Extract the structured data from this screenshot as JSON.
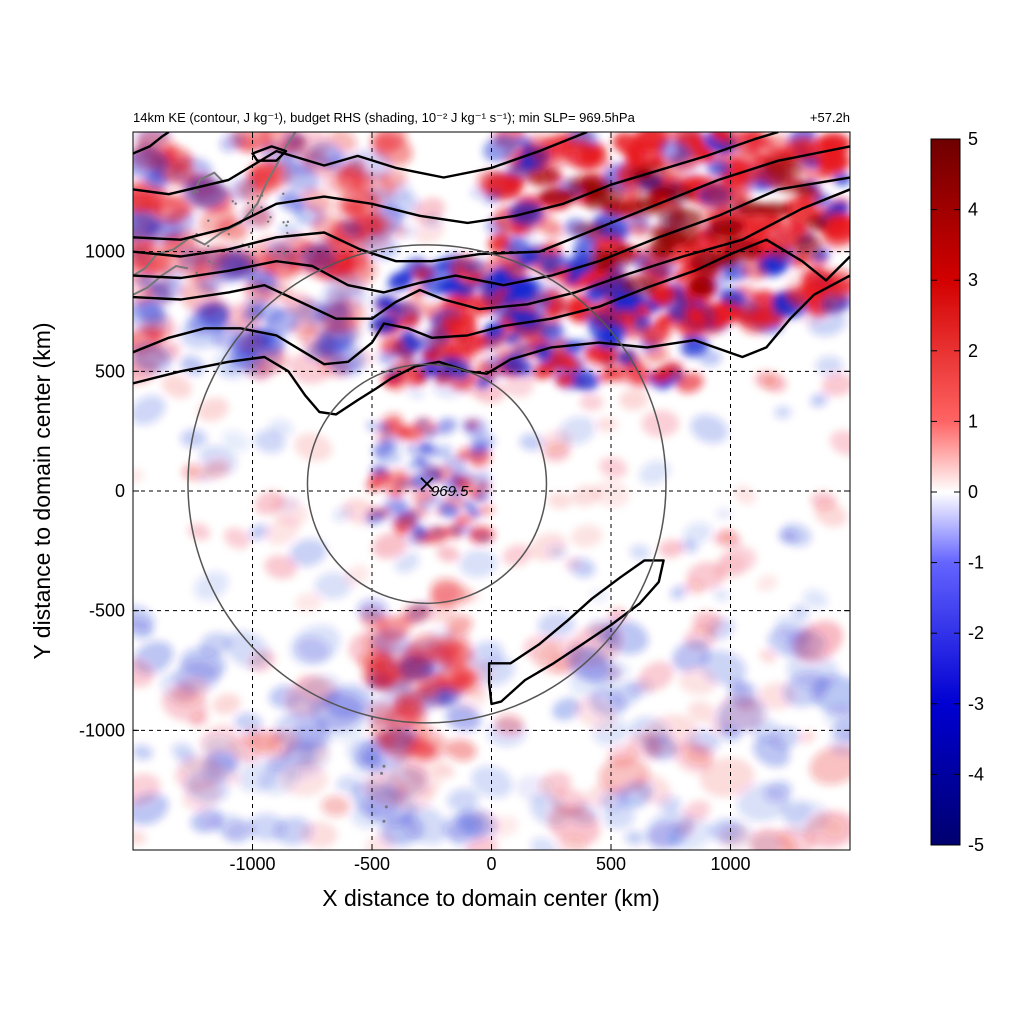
{
  "chart_data": {
    "type": "heatmap",
    "title_left": "14km KE (contour, J kg⁻¹), budget RHS (shading, 10⁻² J kg⁻¹ s⁻¹); min SLP= 969.5hPa",
    "title_right": "+57.2h",
    "xlabel": "X distance to domain center (km)",
    "ylabel": "Y distance to domain center (km)",
    "xlim": [
      -1500,
      1500
    ],
    "ylim": [
      -1500,
      1500
    ],
    "xticks": [
      -1000,
      -500,
      0,
      500,
      1000
    ],
    "yticks": [
      -1000,
      -500,
      0,
      500,
      1000
    ],
    "grid": "dashed",
    "colorbar": {
      "min": -5,
      "max": 5,
      "ticks": [
        5,
        4,
        3,
        2,
        1,
        0,
        -1,
        -2,
        -3,
        -4,
        -5
      ],
      "colormap": [
        "#00006e",
        "#0000ff",
        "#ffffff",
        "#ff0000",
        "#6e0000"
      ]
    },
    "storm_center": {
      "x": -270,
      "y": 30,
      "min_slp_label": "969.5"
    },
    "range_circles_km": [
      500,
      1000
    ],
    "colors": {
      "positive": "#e8141e",
      "negative": "#1428d2",
      "contour": "#000000",
      "circle": "#555555",
      "coastline": "#777777"
    }
  }
}
